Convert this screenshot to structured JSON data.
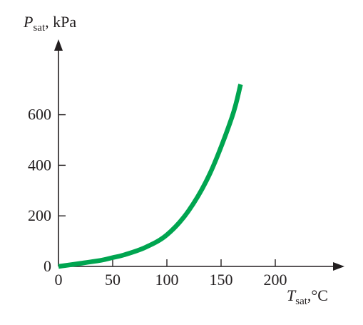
{
  "chart_data": {
    "type": "line",
    "title": "",
    "ylabel": {
      "symbol": "P",
      "subscript": "sat",
      "unit": ", kPa"
    },
    "xlabel": {
      "symbol": "T",
      "subscript": "sat",
      "unit": ",°C"
    },
    "xlim": [
      0,
      260
    ],
    "ylim": [
      0,
      780
    ],
    "x_ticks": [
      0,
      50,
      100,
      150,
      200
    ],
    "x_tick_labels": [
      "0",
      "50",
      "100",
      "150",
      "200"
    ],
    "y_ticks": [
      0,
      200,
      400,
      600
    ],
    "y_tick_labels": [
      "0",
      "200",
      "400",
      "600"
    ],
    "grid": false,
    "series": [
      {
        "color": "#00a550",
        "x": [
          0,
          20,
          40,
          50,
          60,
          80,
          100,
          120,
          140,
          160,
          168
        ],
        "y": [
          0,
          12,
          25,
          35,
          45,
          75,
          125,
          220,
          370,
          590,
          720
        ]
      }
    ]
  }
}
